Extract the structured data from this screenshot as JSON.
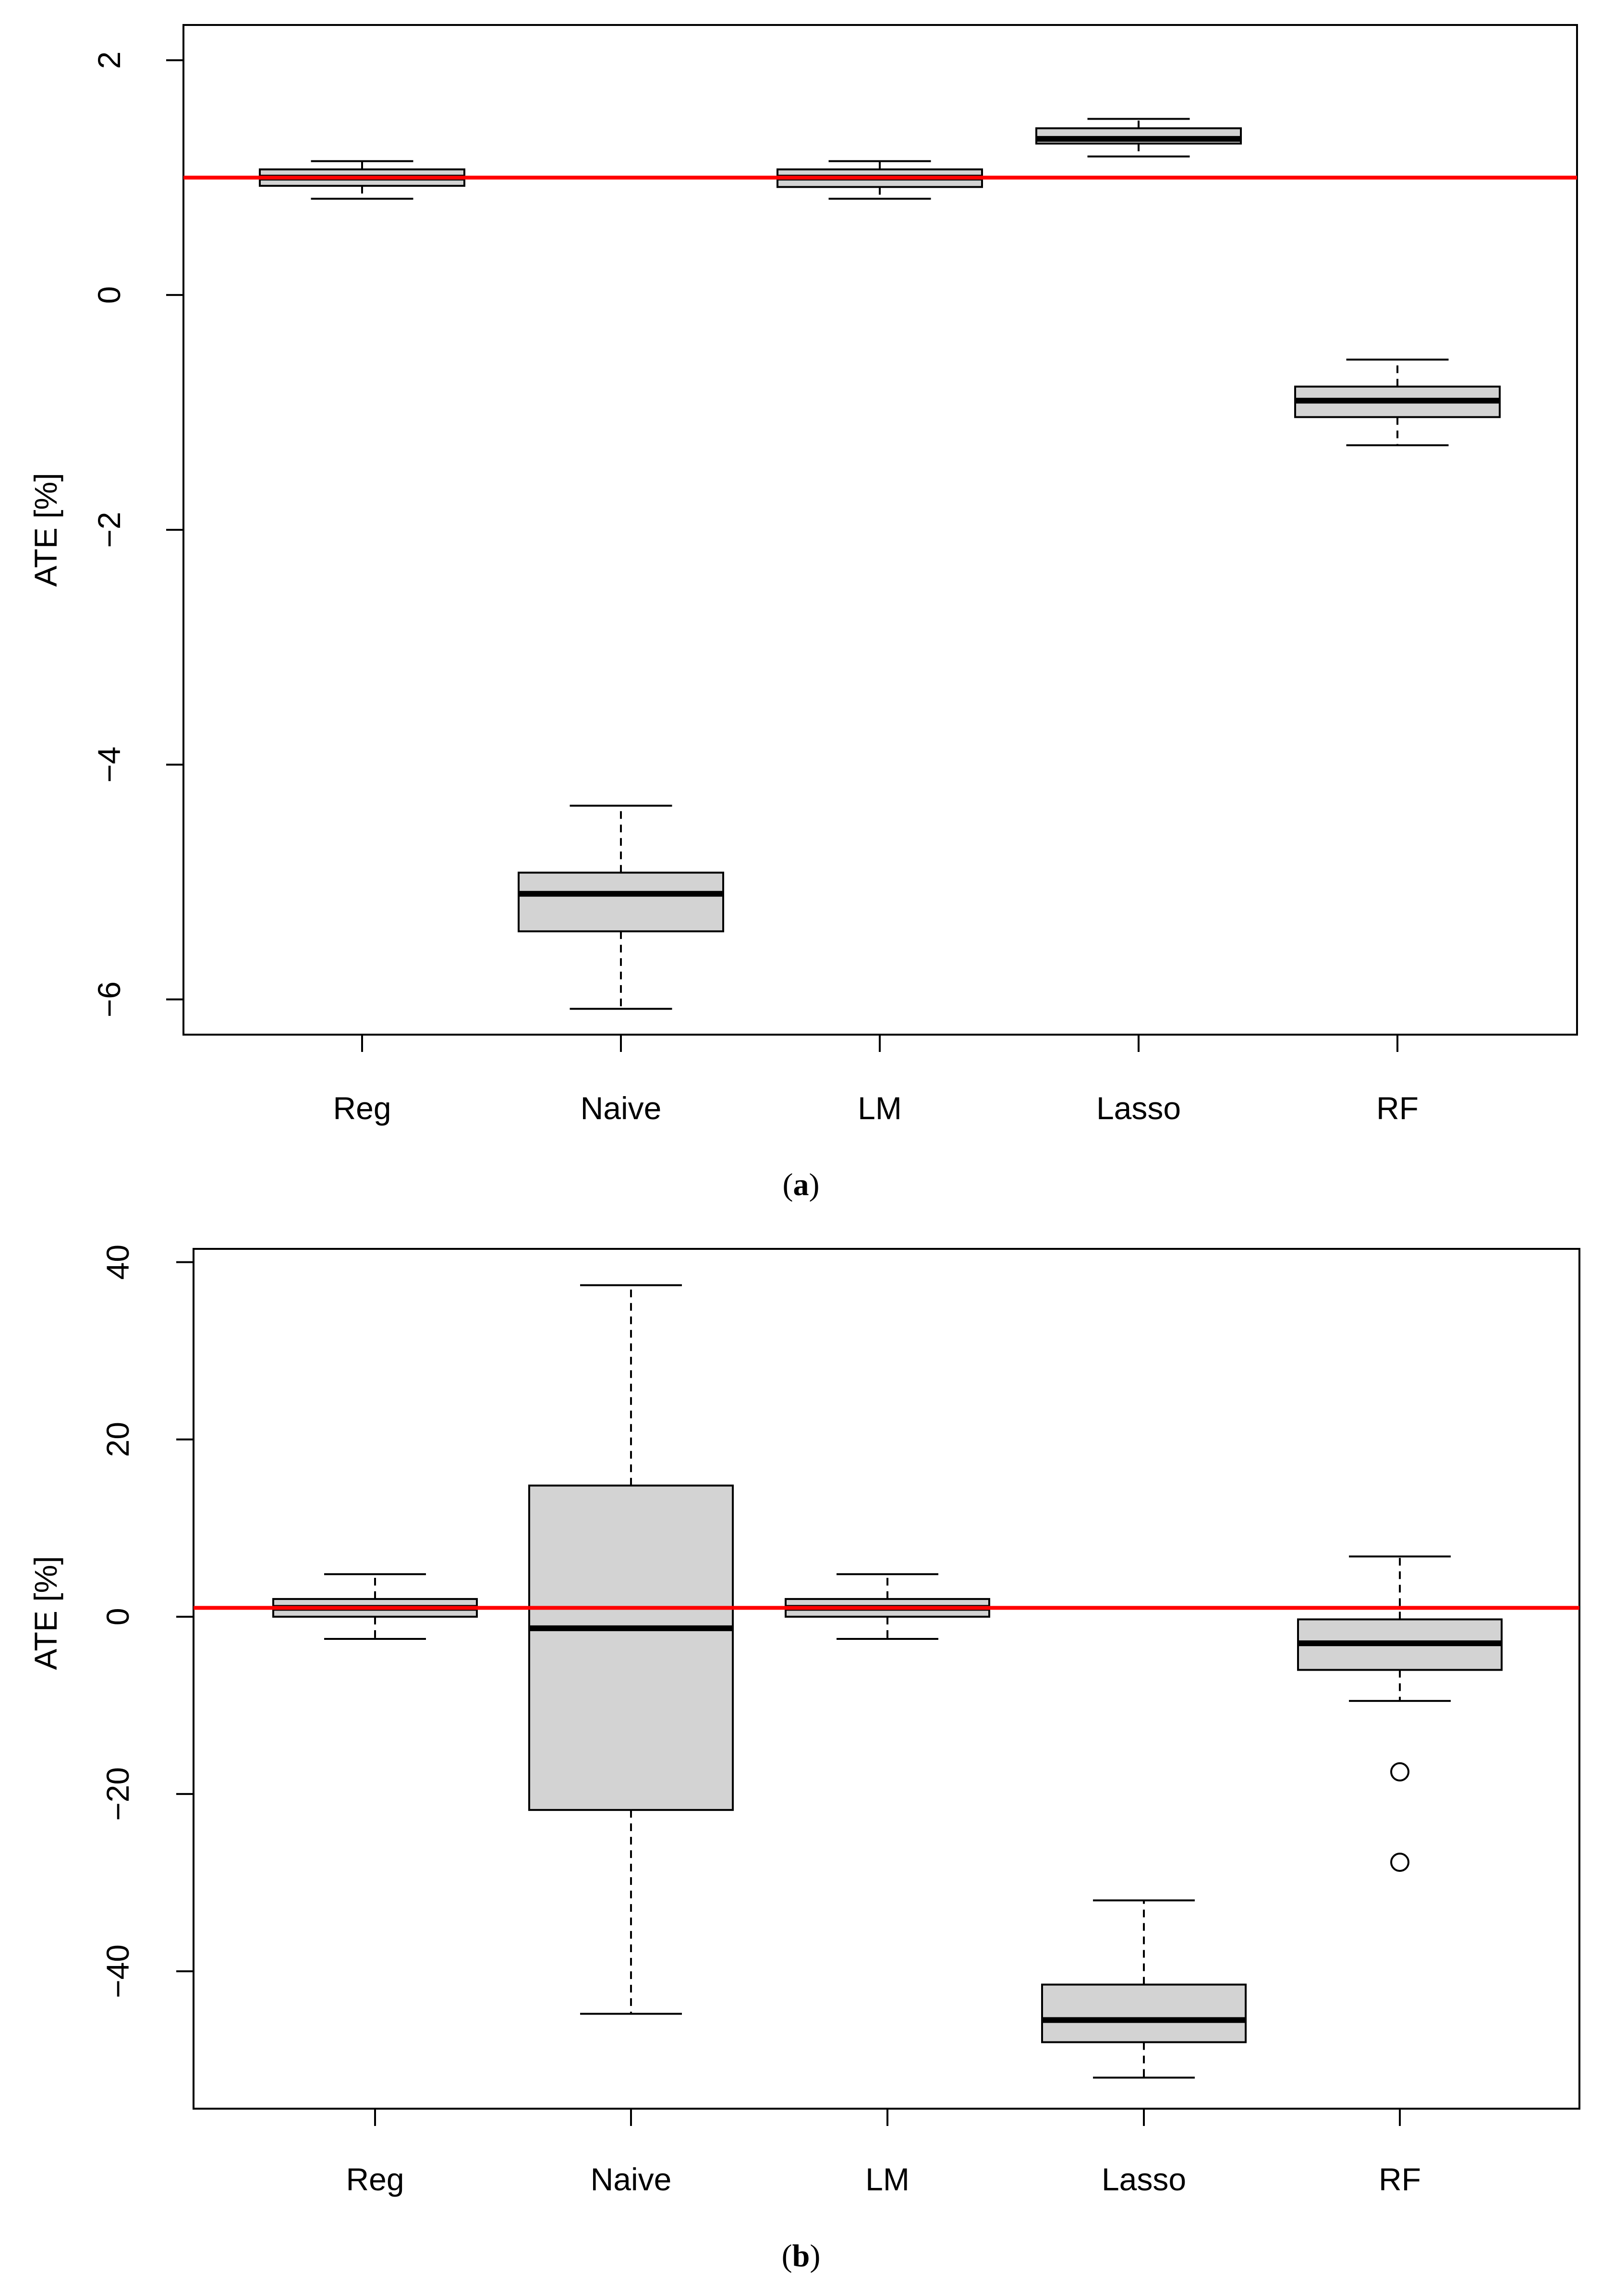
{
  "chart_data": [
    {
      "type": "boxplot",
      "panel_label": "a",
      "title": "",
      "xlabel": "",
      "ylabel": "ATE [%]",
      "ylim": [
        -6.3,
        2.3
      ],
      "yticks": [
        2,
        0,
        -2,
        -4,
        -6
      ],
      "categories": [
        "Reg",
        "Naive",
        "LM",
        "Lasso",
        "RF"
      ],
      "reference_line": 1.0,
      "reference_color": "#ff0000",
      "box_fill": "#d3d3d3",
      "boxes": [
        {
          "name": "Reg",
          "whisker_low": 0.82,
          "q1": 0.93,
          "median": 1.0,
          "q3": 1.07,
          "whisker_high": 1.14,
          "outliers": []
        },
        {
          "name": "Naive",
          "whisker_low": -6.08,
          "q1": -5.42,
          "median": -5.1,
          "q3": -4.92,
          "whisker_high": -4.35,
          "outliers": []
        },
        {
          "name": "LM",
          "whisker_low": 0.82,
          "q1": 0.92,
          "median": 1.0,
          "q3": 1.07,
          "whisker_high": 1.14,
          "outliers": []
        },
        {
          "name": "Lasso",
          "whisker_low": 1.18,
          "q1": 1.29,
          "median": 1.33,
          "q3": 1.42,
          "whisker_high": 1.5,
          "outliers": []
        },
        {
          "name": "RF",
          "whisker_low": -1.28,
          "q1": -1.04,
          "median": -0.9,
          "q3": -0.78,
          "whisker_high": -0.55,
          "outliers": []
        }
      ]
    },
    {
      "type": "boxplot",
      "panel_label": "b",
      "title": "",
      "xlabel": "",
      "ylabel": "ATE [%]",
      "ylim": [
        -55.5,
        41.5
      ],
      "yticks": [
        40,
        20,
        0,
        -20,
        -40
      ],
      "categories": [
        "Reg",
        "Naive",
        "LM",
        "Lasso",
        "RF"
      ],
      "reference_line": 1.0,
      "reference_color": "#ff0000",
      "box_fill": "#d3d3d3",
      "boxes": [
        {
          "name": "Reg",
          "whisker_low": -2.5,
          "q1": 0.0,
          "median": 1.0,
          "q3": 2.0,
          "whisker_high": 4.8,
          "outliers": []
        },
        {
          "name": "Naive",
          "whisker_low": -44.8,
          "q1": -21.8,
          "median": -1.3,
          "q3": 14.8,
          "whisker_high": 37.4,
          "outliers": []
        },
        {
          "name": "LM",
          "whisker_low": -2.5,
          "q1": 0.0,
          "median": 1.0,
          "q3": 2.0,
          "whisker_high": 4.8,
          "outliers": []
        },
        {
          "name": "Lasso",
          "whisker_low": -52.0,
          "q1": -48.0,
          "median": -45.5,
          "q3": -41.5,
          "whisker_high": -32.0,
          "outliers": []
        },
        {
          "name": "RF",
          "whisker_low": -9.5,
          "q1": -6.0,
          "median": -3.0,
          "q3": -0.3,
          "whisker_high": 6.8,
          "outliers": [
            -17.5,
            -27.7
          ]
        }
      ]
    }
  ]
}
